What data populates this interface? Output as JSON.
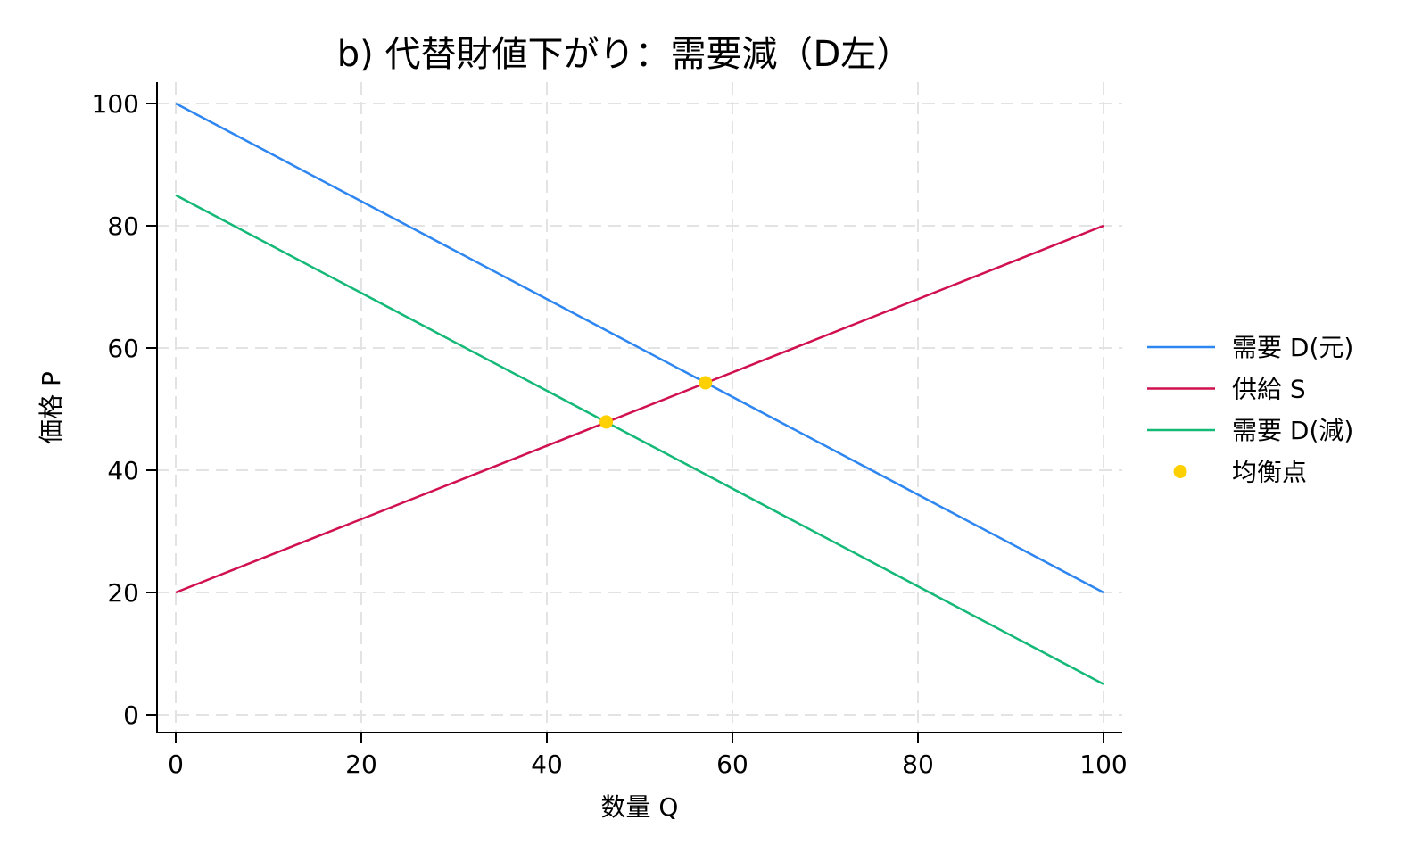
{
  "chart_data": {
    "type": "line",
    "title": "b) 代替財値下がり：需要減（D左）",
    "xlabel": "数量 Q",
    "ylabel": "価格 P",
    "xlim": [
      0,
      100
    ],
    "ylim": [
      0,
      100
    ],
    "x_ticks": [
      "0",
      "20",
      "40",
      "60",
      "80",
      "100"
    ],
    "y_ticks": [
      "0",
      "20",
      "40",
      "60",
      "80",
      "100"
    ],
    "grid": true,
    "grid_style": "dashed",
    "legend_position": "right",
    "series": [
      {
        "name": "需要 D(元)",
        "color": "#2e86f0",
        "kind": "line",
        "x": [
          0,
          100
        ],
        "y": [
          100,
          20
        ]
      },
      {
        "name": "供給 S",
        "color": "#d0104f",
        "kind": "line",
        "x": [
          0,
          100
        ],
        "y": [
          20,
          80
        ]
      },
      {
        "name": "需要 D(減)",
        "color": "#14b877",
        "kind": "line",
        "x": [
          0,
          100
        ],
        "y": [
          85,
          5
        ]
      },
      {
        "name": "均衡点",
        "color": "#ffd000",
        "kind": "scatter",
        "x": [
          57.1,
          46.4
        ],
        "y": [
          54.3,
          47.9
        ]
      }
    ]
  }
}
